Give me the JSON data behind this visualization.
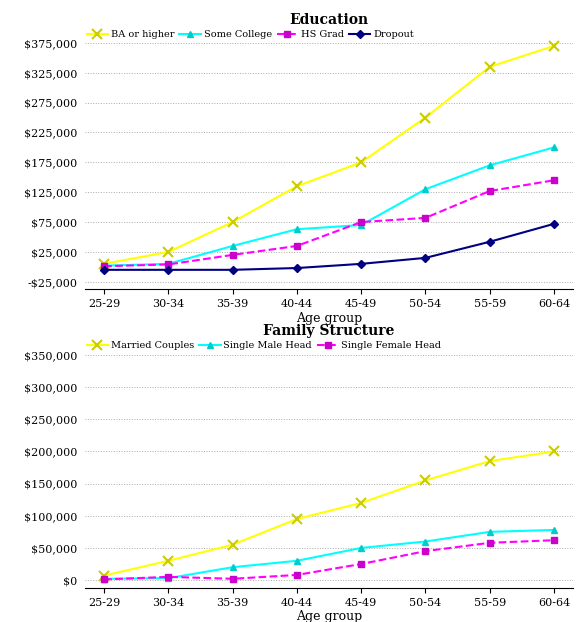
{
  "age_groups": [
    "25-29",
    "30-34",
    "35-39",
    "40-44",
    "45-49",
    "50-54",
    "55-59",
    "60-64"
  ],
  "education": {
    "BA or higher": [
      5000,
      25000,
      75000,
      135000,
      175000,
      250000,
      335000,
      370000
    ],
    "Some College": [
      2000,
      5000,
      35000,
      63000,
      70000,
      130000,
      170000,
      200000
    ],
    "HS Grad": [
      1000,
      4000,
      20000,
      35000,
      75000,
      82000,
      127000,
      145000
    ],
    "Dropout": [
      -5000,
      -5000,
      -5000,
      -2000,
      5000,
      15000,
      42000,
      72000
    ]
  },
  "family": {
    "Married Couples": [
      7000,
      30000,
      55000,
      95000,
      120000,
      155000,
      185000,
      200000
    ],
    "Single Male Head": [
      2000,
      3000,
      20000,
      30000,
      50000,
      60000,
      75000,
      78000
    ],
    "Single Female Head": [
      1000,
      5000,
      2000,
      8000,
      25000,
      45000,
      58000,
      62000
    ]
  },
  "edu_colors": {
    "BA or higher": "#ffff00",
    "Some College": "#00ffff",
    "HS Grad": "#ff00ff",
    "Dropout": "#000080"
  },
  "fam_colors": {
    "Married Couples": "#ffff00",
    "Single Male Head": "#00ffff",
    "Single Female Head": "#ff00ff"
  },
  "edu_ylim": [
    -37500,
    400000
  ],
  "edu_yticks": [
    -25000,
    25000,
    75000,
    125000,
    175000,
    225000,
    275000,
    325000,
    375000
  ],
  "fam_ylim": [
    -12000,
    375000
  ],
  "fam_yticks": [
    0,
    50000,
    100000,
    150000,
    200000,
    250000,
    300000,
    350000
  ],
  "title1": "Education",
  "title2": "Family Structure",
  "xlabel": "Age group",
  "background_color": "#ffffff",
  "grid_color": "#aaaaaa",
  "edu_marker_colors": {
    "BA or higher": "#cccc00",
    "Some College": "#00cccc",
    "HS Grad": "#cc00cc",
    "Dropout": "#000080"
  },
  "fam_marker_colors": {
    "Married Couples": "#cccc00",
    "Single Male Head": "#00cccc",
    "Single Female Head": "#cc00cc"
  }
}
